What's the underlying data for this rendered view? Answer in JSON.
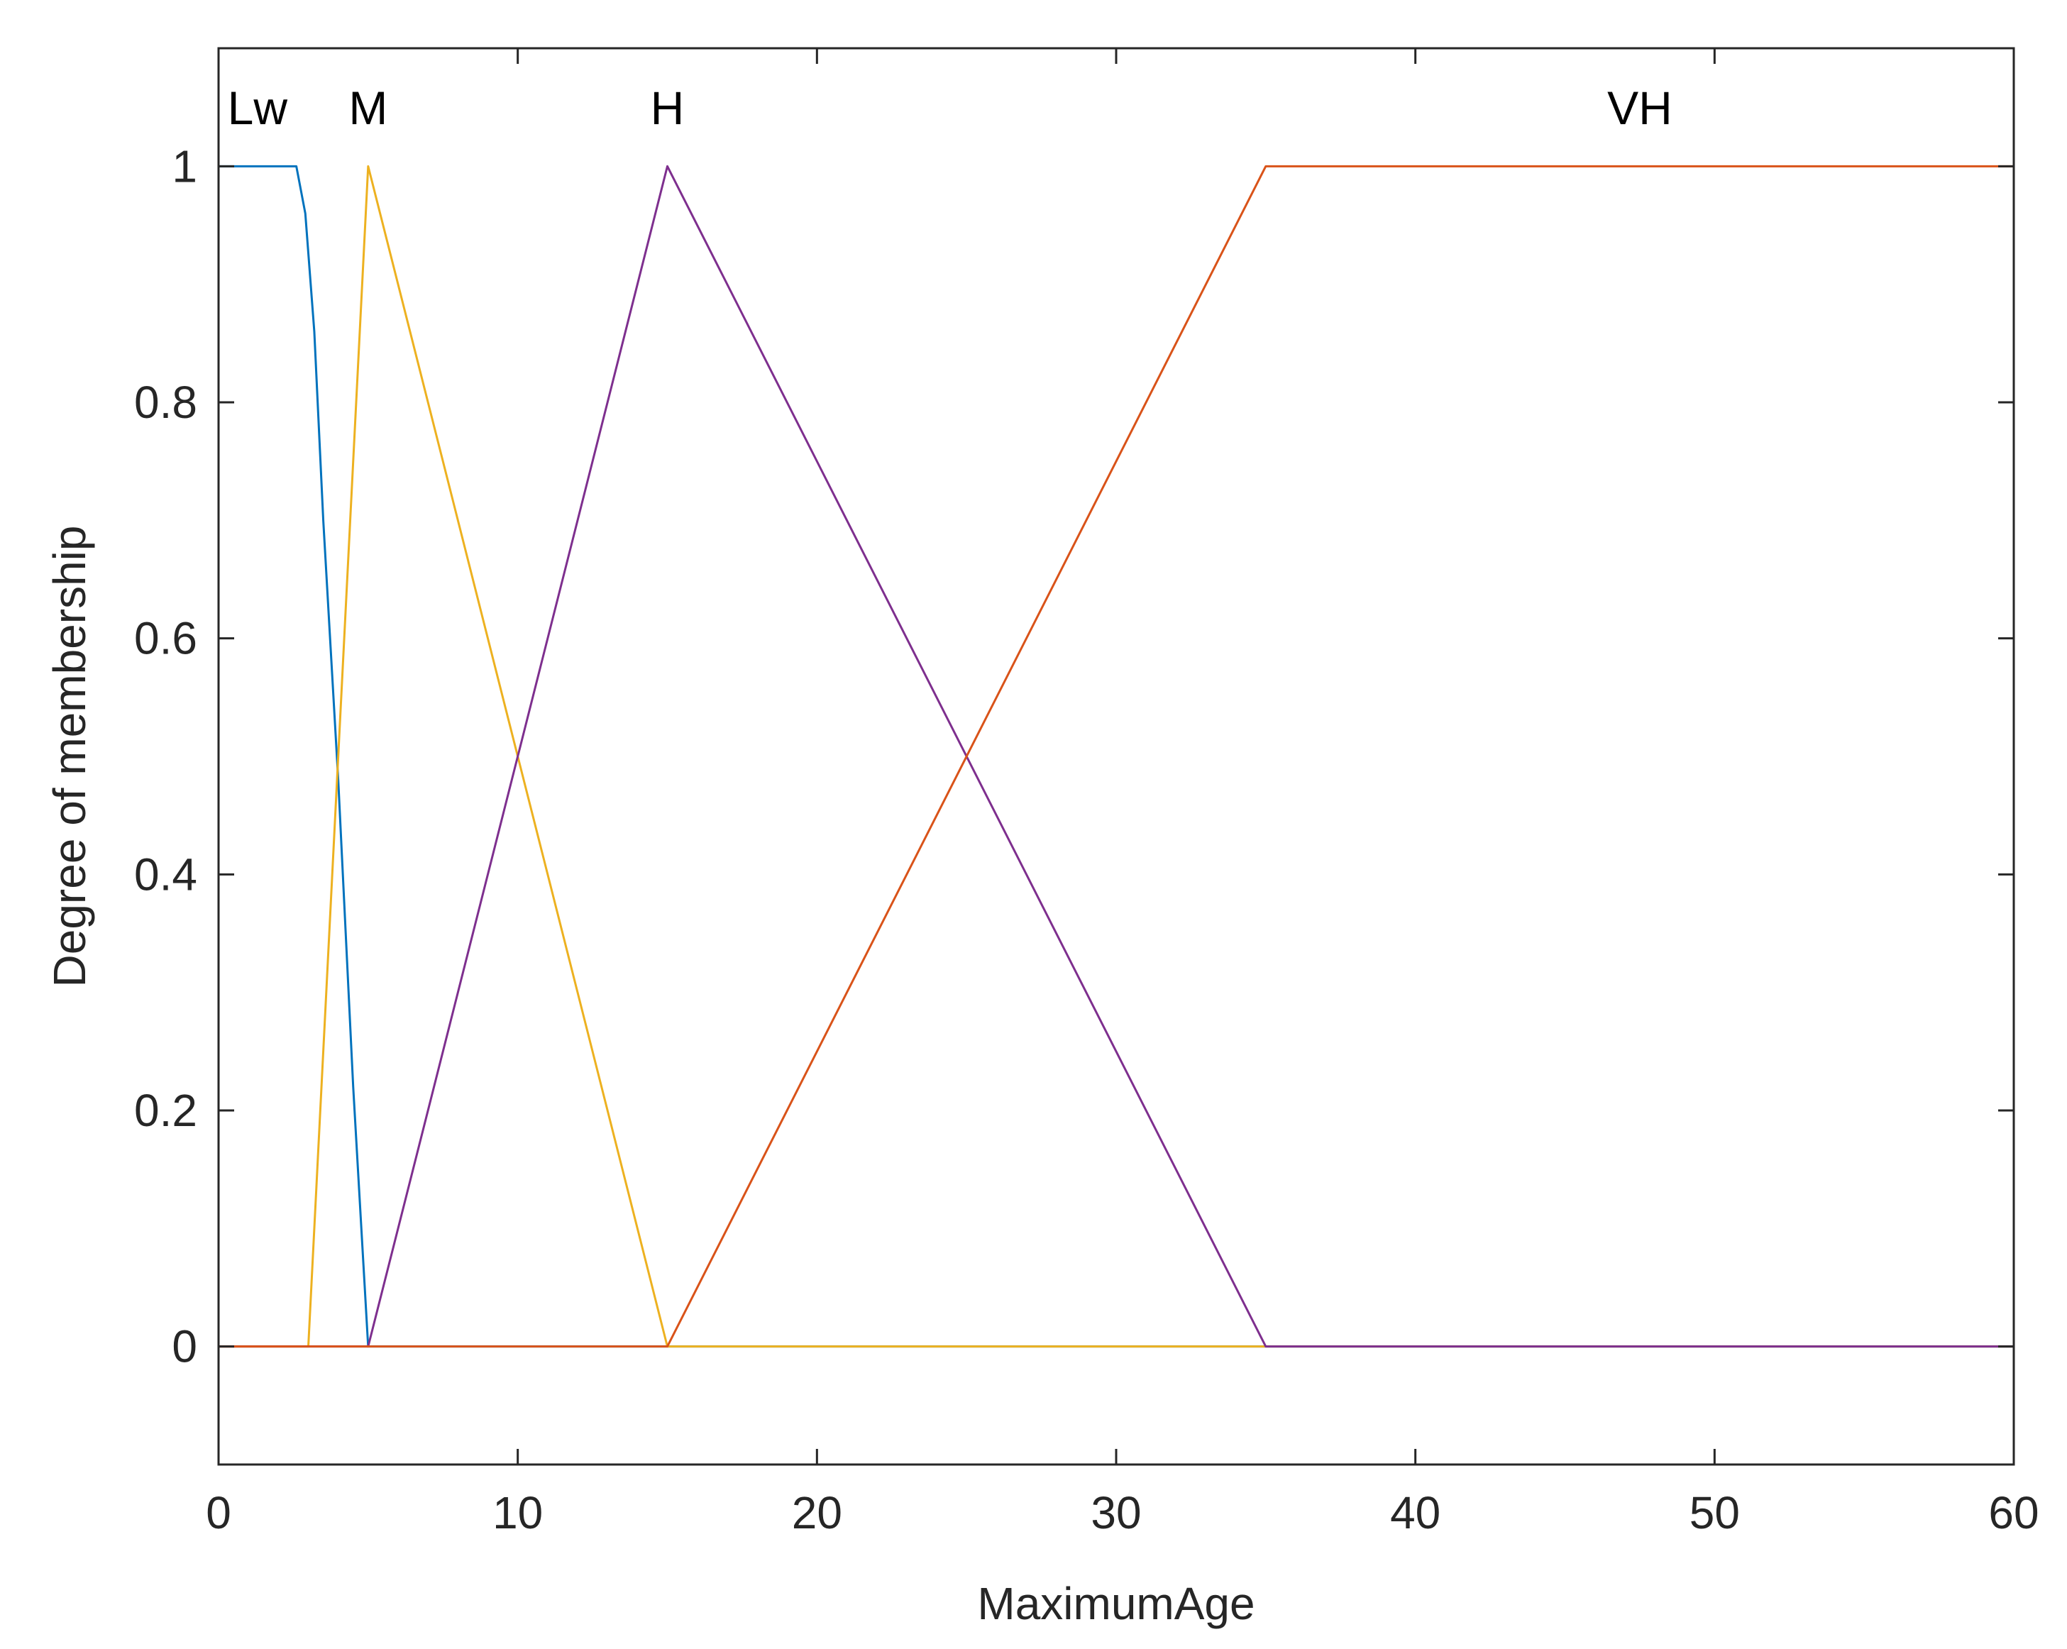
{
  "chart_data": {
    "type": "line",
    "title": "",
    "xlabel": "MaximumAge",
    "ylabel": "Degree of membership",
    "xlim": [
      0,
      60
    ],
    "ylim": [
      -0.1,
      1.1
    ],
    "x_ticks": [
      0,
      10,
      20,
      30,
      40,
      50,
      60
    ],
    "x_tick_labels": [
      "0",
      "10",
      "20",
      "30",
      "40",
      "50",
      "60"
    ],
    "y_ticks": [
      0,
      0.2,
      0.4,
      0.6,
      0.8,
      1
    ],
    "y_tick_labels": [
      "0",
      "0.2",
      "0.4",
      "0.6",
      "0.8",
      "1"
    ],
    "grid": false,
    "series": [
      {
        "name": "Lw",
        "color": "#0072BD",
        "x": [
          0,
          2.6,
          2.9,
          3.2,
          3.5,
          4.0,
          4.5,
          5.0,
          60
        ],
        "y": [
          1,
          1,
          0.96,
          0.86,
          0.7,
          0.48,
          0.22,
          0,
          0
        ]
      },
      {
        "name": "M",
        "color": "#EDB120",
        "x": [
          0,
          3,
          5,
          15,
          60
        ],
        "y": [
          0,
          0,
          1,
          0,
          0
        ]
      },
      {
        "name": "H",
        "color": "#7E2F8E",
        "x": [
          0,
          5,
          15,
          35,
          60
        ],
        "y": [
          0,
          0,
          1,
          0,
          0
        ]
      },
      {
        "name": "VH",
        "color": "#D95319",
        "x": [
          0,
          15,
          35,
          60
        ],
        "y": [
          0,
          0,
          1,
          1
        ]
      }
    ],
    "annotations": [
      {
        "text": "Lw",
        "x": 1.3,
        "y": 1.05
      },
      {
        "text": "M",
        "x": 5,
        "y": 1.05
      },
      {
        "text": "H",
        "x": 15,
        "y": 1.05
      },
      {
        "text": "VH",
        "x": 47.5,
        "y": 1.05
      }
    ]
  }
}
